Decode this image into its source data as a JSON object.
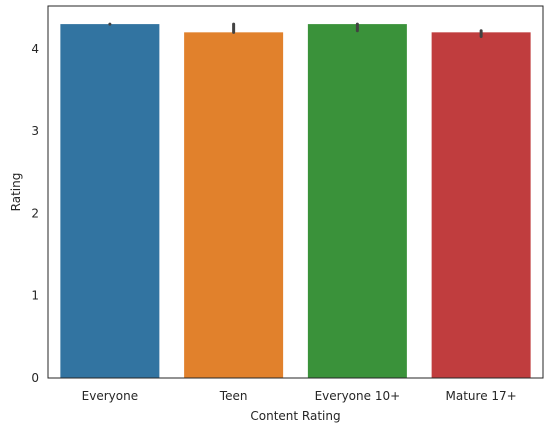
{
  "chart_data": {
    "type": "bar",
    "categories": [
      "Everyone",
      "Teen",
      "Everyone 10+",
      "Mature 17+"
    ],
    "values": [
      4.3,
      4.2,
      4.3,
      4.2
    ],
    "error_bars": [
      [
        4.3,
        4.3
      ],
      [
        4.2,
        4.3
      ],
      [
        4.22,
        4.3
      ],
      [
        4.15,
        4.22
      ]
    ],
    "colors": [
      "#3274a1",
      "#e1812c",
      "#3a923a",
      "#c03d3e"
    ],
    "error_color": "#424242",
    "title": "",
    "xlabel": "Content Rating",
    "ylabel": "Rating",
    "ylim": [
      0,
      4.52
    ],
    "yticks": [
      0,
      1,
      2,
      3,
      4
    ],
    "grid": false
  }
}
